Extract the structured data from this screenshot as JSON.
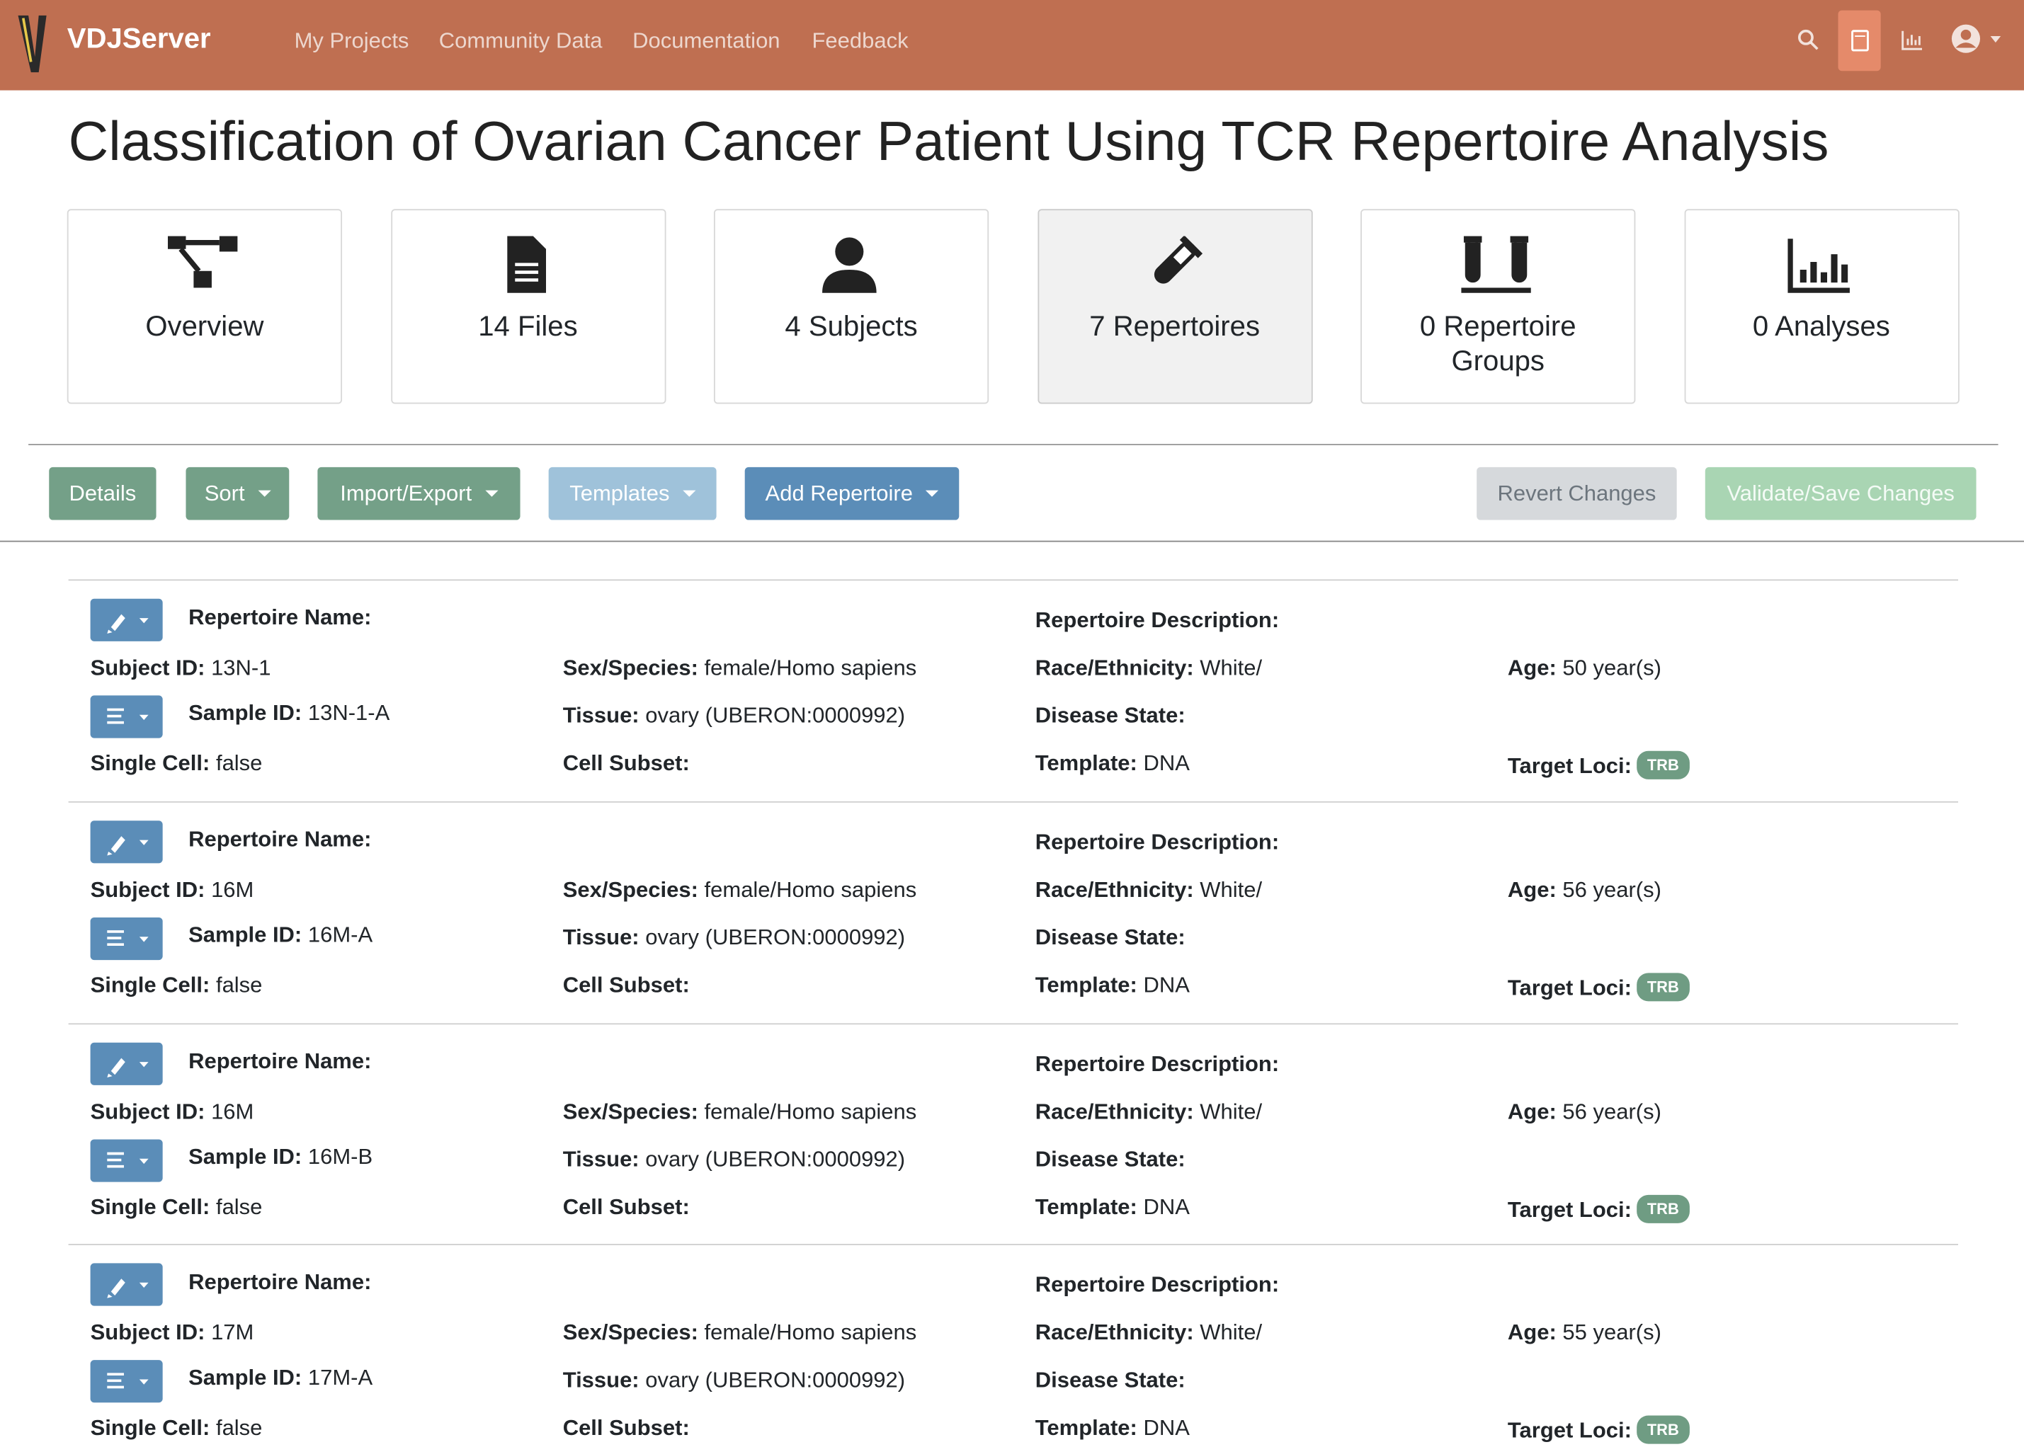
{
  "navbar": {
    "brand": "VDJServer",
    "links": [
      "My Projects",
      "Community Data",
      "Documentation",
      "Feedback"
    ]
  },
  "title": "Classification of Ovarian Cancer Patient Using TCR Repertoire Analysis",
  "tabs": [
    "Overview",
    "14 Files",
    "4 Subjects",
    "7 Repertoires",
    "0 Repertoire Groups",
    "0 Analyses"
  ],
  "active_tab": 3,
  "toolbar": {
    "left": [
      "Details",
      "Sort",
      "Import/Export",
      "Templates",
      "Add Repertoire"
    ],
    "right": [
      "Revert Changes",
      "Validate/Save Changes"
    ]
  },
  "labels": {
    "repertoire_name": "Repertoire Name:",
    "subject_id": "Subject ID:",
    "sample_id": "Sample ID:",
    "single_cell": "Single Cell:",
    "sex_species": "Sex/Species:",
    "tissue": "Tissue:",
    "cell_subset": "Cell Subset:",
    "description": "Repertoire Description:",
    "race": "Race/Ethnicity:",
    "disease": "Disease State:",
    "template": "Template:",
    "age": "Age:",
    "target_loci": "Target Loci:"
  },
  "repertoires": [
    {
      "subject_id": "13N-1",
      "sample_id": "13N-1-A",
      "single_cell": "false",
      "sex_species": "female/Homo sapiens",
      "tissue": "ovary (UBERON:0000992)",
      "race": "White/",
      "template": "DNA",
      "age": "50 year(s)",
      "target_loci": "TRB"
    },
    {
      "subject_id": "16M",
      "sample_id": "16M-A",
      "single_cell": "false",
      "sex_species": "female/Homo sapiens",
      "tissue": "ovary (UBERON:0000992)",
      "race": "White/",
      "template": "DNA",
      "age": "56 year(s)",
      "target_loci": "TRB"
    },
    {
      "subject_id": "16M",
      "sample_id": "16M-B",
      "single_cell": "false",
      "sex_species": "female/Homo sapiens",
      "tissue": "ovary (UBERON:0000992)",
      "race": "White/",
      "template": "DNA",
      "age": "56 year(s)",
      "target_loci": "TRB"
    },
    {
      "subject_id": "17M",
      "sample_id": "17M-A",
      "single_cell": "false",
      "sex_species": "female/Homo sapiens",
      "tissue": "ovary (UBERON:0000992)",
      "race": "White/",
      "template": "DNA",
      "age": "55 year(s)",
      "target_loci": "TRB"
    }
  ]
}
